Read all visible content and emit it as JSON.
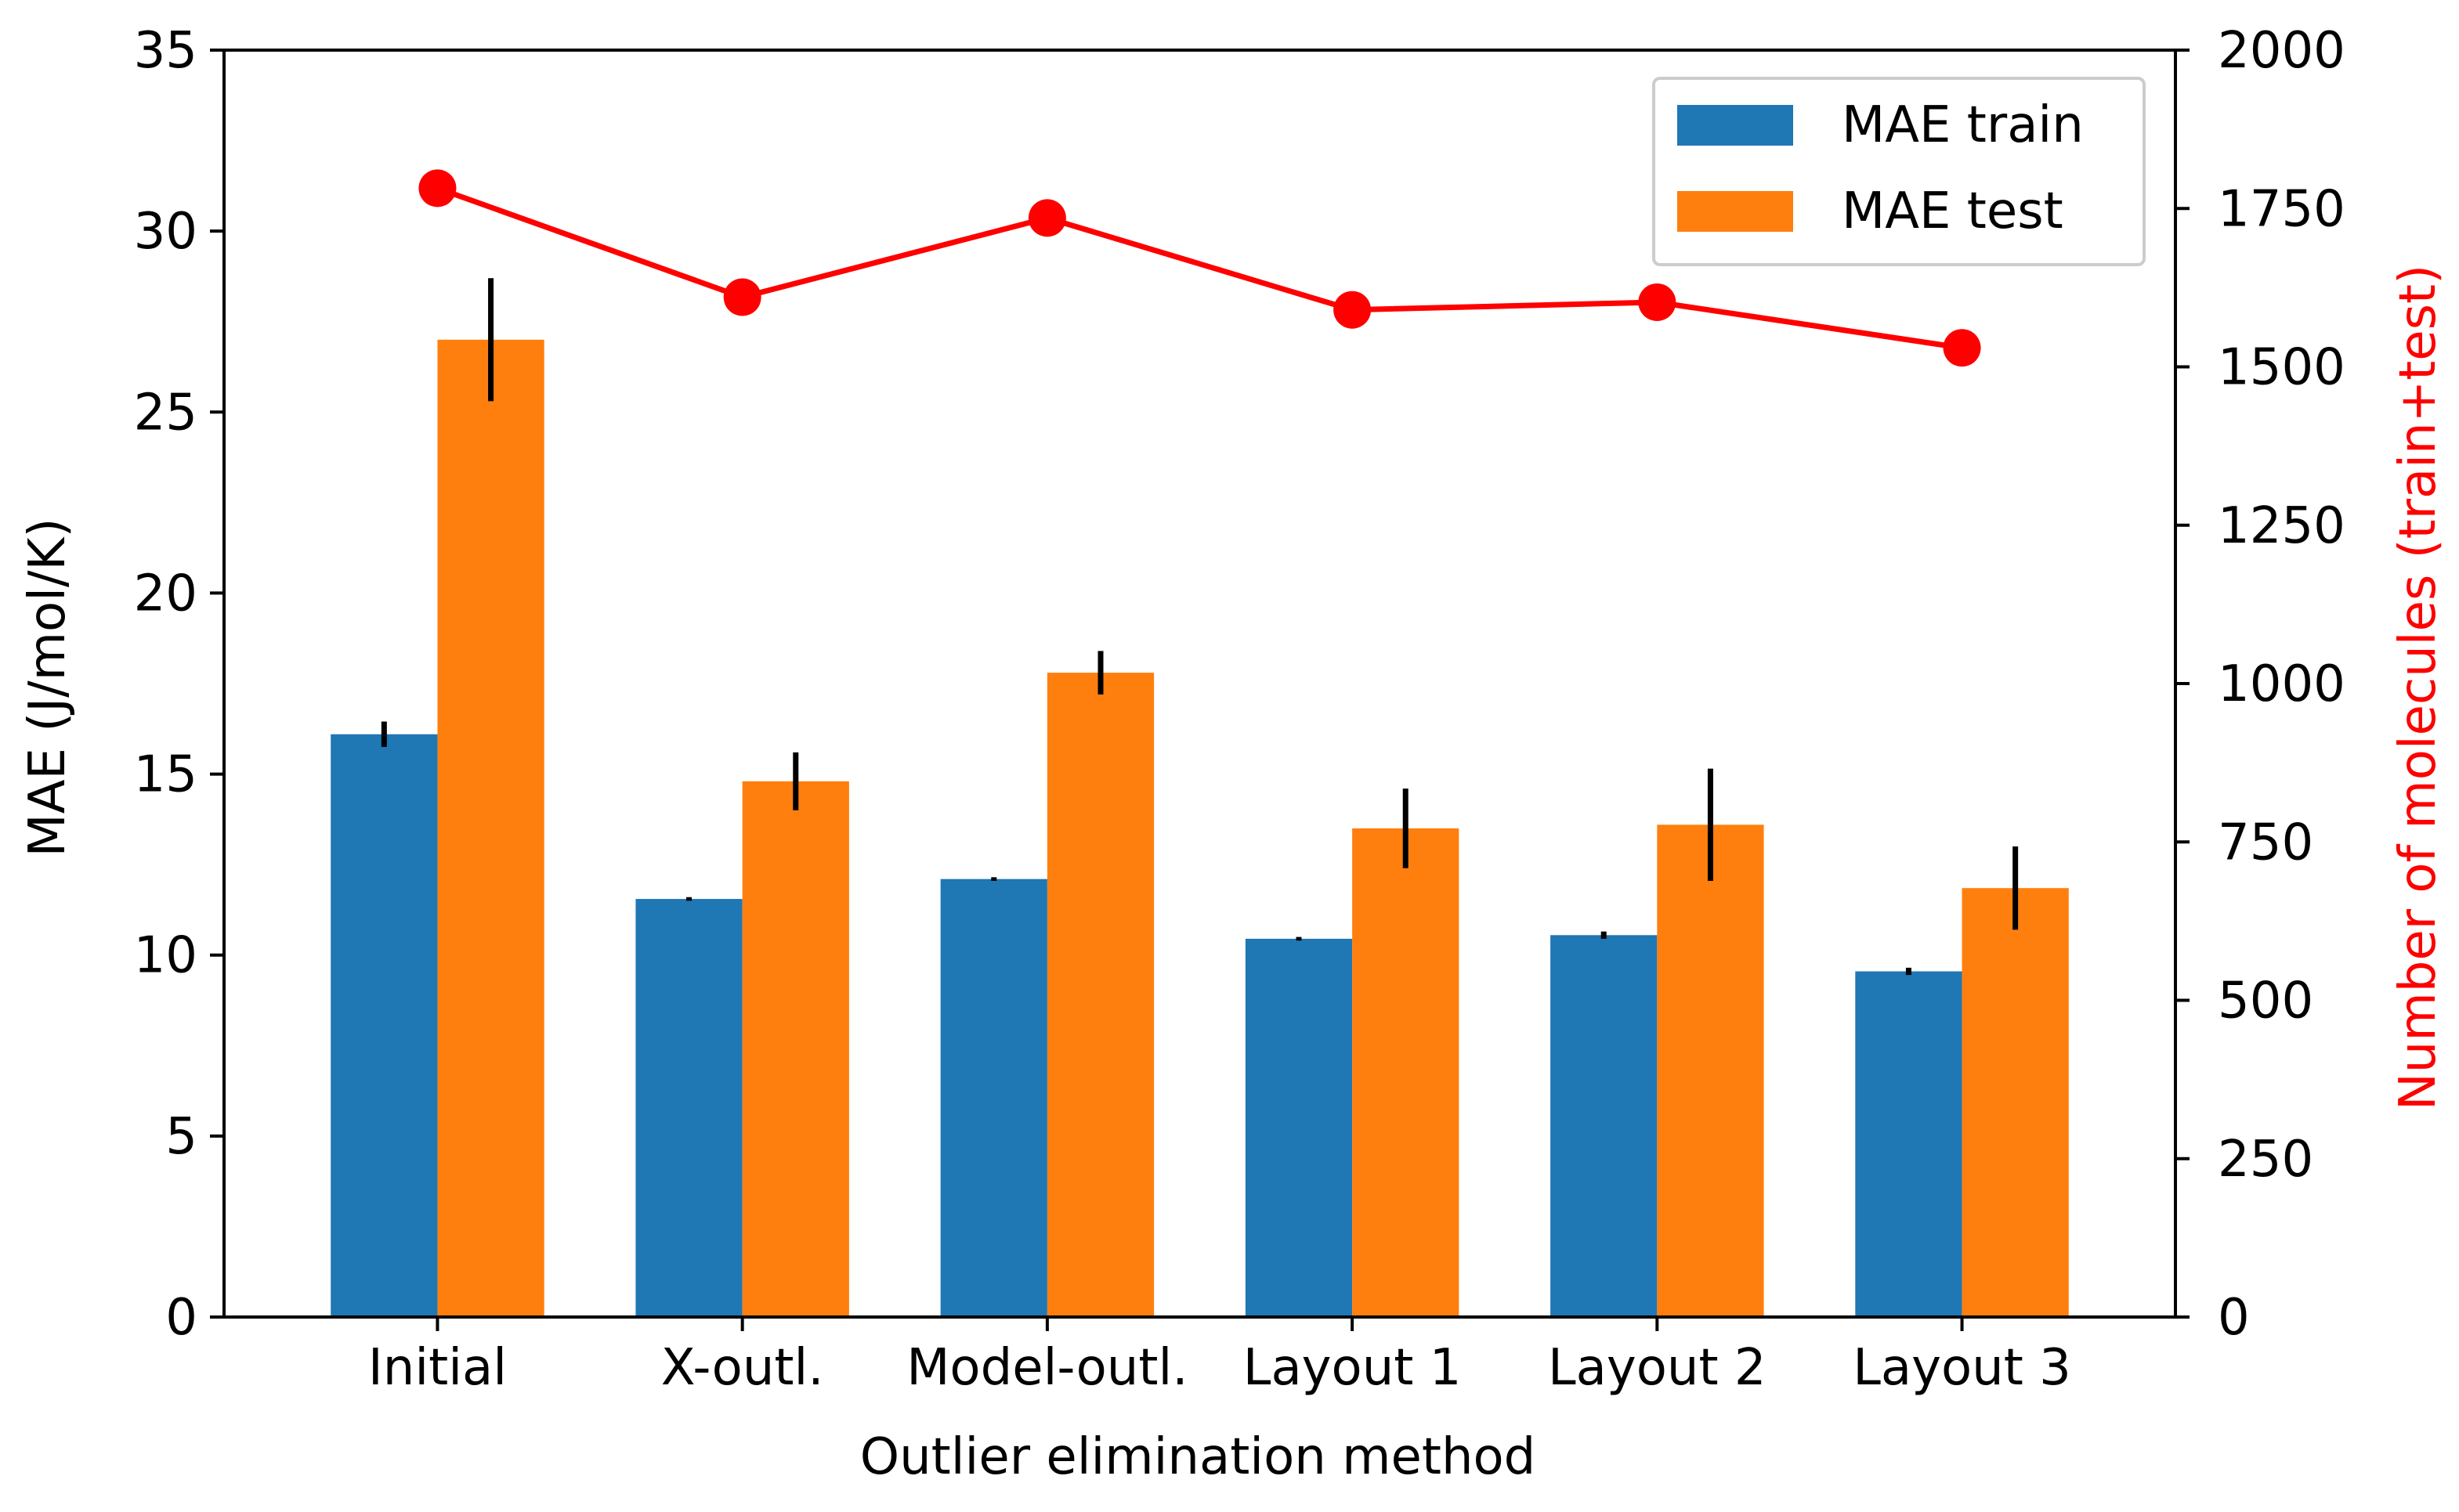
{
  "chart_data": {
    "type": "bar",
    "title": "",
    "xlabel": "Outlier elimination method",
    "ylabel": "MAE (J/mol/K)",
    "y2label": "Number of molecules (train+test)",
    "categories": [
      "Initial",
      "X-outl.",
      "Model-outl.",
      "Layout 1",
      "Layout 2",
      "Layout 3"
    ],
    "ylim": [
      0,
      35
    ],
    "yticks": [
      0,
      5,
      10,
      15,
      20,
      25,
      30,
      35
    ],
    "y2lim": [
      0,
      2000
    ],
    "y2ticks": [
      0,
      250,
      500,
      750,
      1000,
      1250,
      1500,
      1750,
      2000
    ],
    "series": [
      {
        "name": "MAE train",
        "color": "#1f77b4",
        "values": [
          16.1,
          11.55,
          12.1,
          10.45,
          10.55,
          9.55
        ],
        "errors": [
          0.35,
          0.05,
          0.05,
          0.05,
          0.1,
          0.1
        ]
      },
      {
        "name": "MAE test",
        "color": "#ff7f0e",
        "values": [
          27.0,
          14.8,
          17.8,
          13.5,
          13.6,
          11.85
        ],
        "errors": [
          1.7,
          0.8,
          0.6,
          1.1,
          1.55,
          1.15
        ]
      }
    ],
    "line_series": {
      "name": "Number of molecules (train+test)",
      "axis": "right",
      "color": "#ff0000",
      "values": [
        1782,
        1610,
        1735,
        1590,
        1602,
        1530
      ]
    },
    "legend": {
      "position": "top-right",
      "entries": [
        "MAE train",
        "MAE test"
      ]
    }
  }
}
